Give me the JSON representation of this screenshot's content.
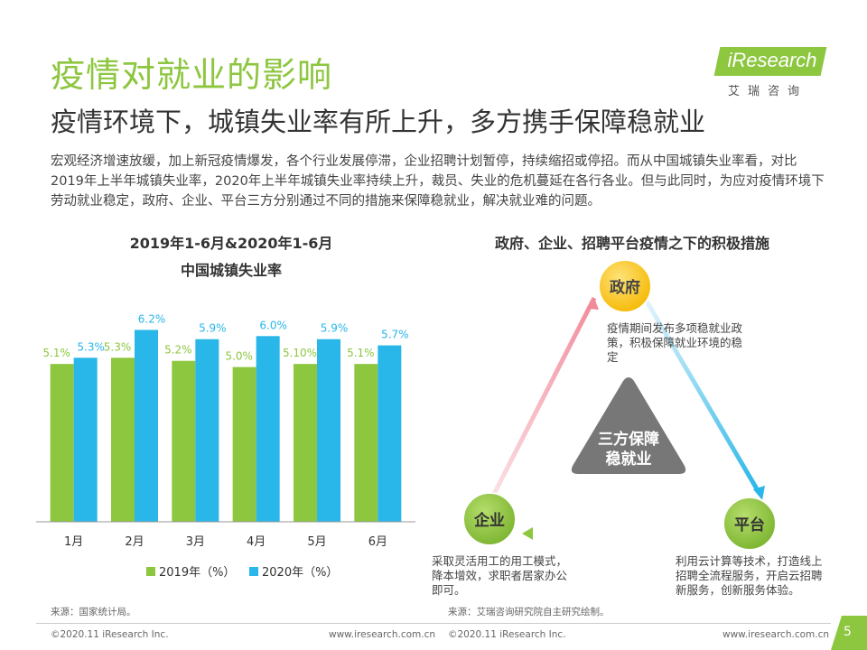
{
  "header": {
    "title": "疫情对就业的影响",
    "subtitle": "疫情环境下，城镇失业率有所上升，多方携手保障稳就业",
    "intro": "宏观经济增速放缓，加上新冠疫情爆发，各个行业发展停滞，企业招聘计划暂停，持续缩招或停招。而从中国城镇失业率看，对比2019年上半年城镇失业率，2020年上半年城镇失业率持续上升，裁员、失业的危机蔓延在各行各业。但与此同时，为应对疫情环境下劳动就业稳定，政府、企业、平台三方分别通过不同的措施来保障稳就业，解决就业难的问题。"
  },
  "logo": {
    "text": "iResearch",
    "cn": "艾瑞咨询"
  },
  "chart_data": {
    "type": "bar",
    "title": "2019年1-6月&2020年1-6月",
    "subtitle": "中国城镇失业率",
    "categories": [
      "1月",
      "2月",
      "3月",
      "4月",
      "5月",
      "6月"
    ],
    "series": [
      {
        "name": "2019年（%）",
        "color": "#8dc63f",
        "values": [
          5.1,
          5.3,
          5.2,
          5.0,
          5.1,
          5.1
        ],
        "labels": [
          "5.1%",
          "5.3%",
          "5.2%",
          "5.0%",
          "5.10%",
          "5.1%"
        ]
      },
      {
        "name": "2020年（%）",
        "color": "#29b6e8",
        "values": [
          5.3,
          6.2,
          5.9,
          6.0,
          5.9,
          5.7
        ],
        "labels": [
          "5.3%",
          "6.2%",
          "5.9%",
          "6.0%",
          "5.9%",
          "5.7%"
        ]
      }
    ],
    "ylim": [
      0,
      7
    ],
    "grid": false,
    "legend": "bottom"
  },
  "diagram": {
    "title": "政府、企业、招聘平台疫情之下的积极措施",
    "center": "三方保障\n稳就业",
    "nodes": {
      "gov": {
        "label": "政府",
        "desc": "疫情期间发布多项稳就业政策，积极保障就业环境的稳定"
      },
      "ent": {
        "label": "企业",
        "desc": "采取灵活用工的用工模式，降本增效，求职者居家办公即可。"
      },
      "plat": {
        "label": "平台",
        "desc": "利用云计算等技术，打造线上招聘全流程服务，开启云招聘新服务，创新服务体验。"
      }
    }
  },
  "footer": {
    "source_left": "来源：国家统计局。",
    "source_right": "来源：艾瑞咨询研究院自主研究绘制。",
    "copyright": "©2020.11 iResearch Inc.",
    "website": "www.iresearch.com.cn",
    "page": "5"
  }
}
